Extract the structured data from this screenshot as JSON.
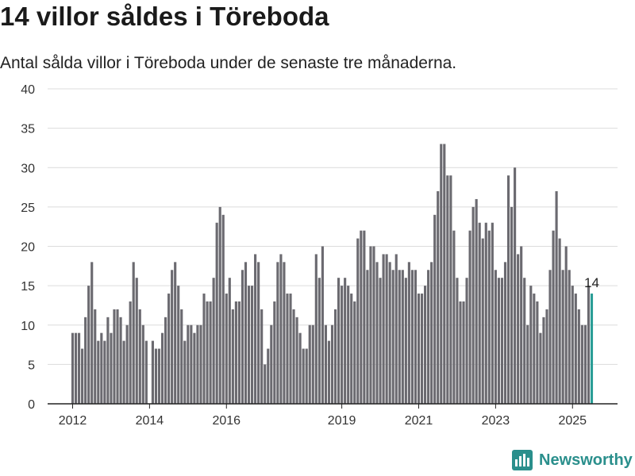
{
  "header": {
    "title": "14 villor såldes i Töreboda",
    "subtitle": "Antal sålda villor i Töreboda under de senaste tre månaderna."
  },
  "brand": {
    "name": "Newsworthy",
    "icon": "newsworthy-logo-icon",
    "color": "#2a8f8c"
  },
  "chart_data": {
    "type": "bar",
    "title": "",
    "xlabel": "",
    "ylabel": "",
    "ylim": [
      0,
      40
    ],
    "y_ticks": [
      0,
      5,
      10,
      15,
      20,
      25,
      30,
      35,
      40
    ],
    "grid": true,
    "legend": "none",
    "bar_color": "#6b6a70",
    "highlight_color": "#2a9d96",
    "x_tick_labels": [
      {
        "label": "2012",
        "index": 0
      },
      {
        "label": "2014",
        "index": 24
      },
      {
        "label": "2016",
        "index": 48
      },
      {
        "label": "2019",
        "index": 84
      },
      {
        "label": "2021",
        "index": 108
      },
      {
        "label": "2023",
        "index": 132
      },
      {
        "label": "2025",
        "index": 156
      }
    ],
    "annotation": {
      "label": "14",
      "index": 162
    },
    "values": [
      9,
      9,
      9,
      7,
      11,
      15,
      18,
      12,
      8,
      9,
      8,
      11,
      9,
      12,
      12,
      11,
      8,
      10,
      13,
      18,
      16,
      12,
      10,
      8,
      0,
      8,
      7,
      7,
      9,
      11,
      14,
      17,
      18,
      15,
      12,
      8,
      10,
      10,
      9,
      10,
      10,
      14,
      13,
      13,
      16,
      23,
      25,
      24,
      14,
      16,
      12,
      13,
      13,
      17,
      18,
      15,
      15,
      19,
      18,
      12,
      5,
      7,
      10,
      13,
      18,
      19,
      18,
      14,
      14,
      12,
      11,
      9,
      7,
      7,
      10,
      10,
      19,
      16,
      20,
      10,
      8,
      10,
      12,
      16,
      15,
      16,
      15,
      14,
      13,
      21,
      22,
      22,
      17,
      20,
      20,
      18,
      16,
      19,
      19,
      18,
      17,
      19,
      17,
      17,
      16,
      18,
      17,
      17,
      14,
      14,
      15,
      17,
      18,
      24,
      27,
      33,
      33,
      29,
      29,
      22,
      16,
      13,
      13,
      16,
      22,
      25,
      26,
      23,
      21,
      23,
      22,
      23,
      17,
      16,
      16,
      18,
      29,
      25,
      30,
      19,
      20,
      16,
      10,
      15,
      14,
      13,
      9,
      11,
      12,
      17,
      22,
      27,
      21,
      17,
      20,
      17,
      15,
      14,
      12,
      10,
      10,
      15,
      14
    ]
  }
}
